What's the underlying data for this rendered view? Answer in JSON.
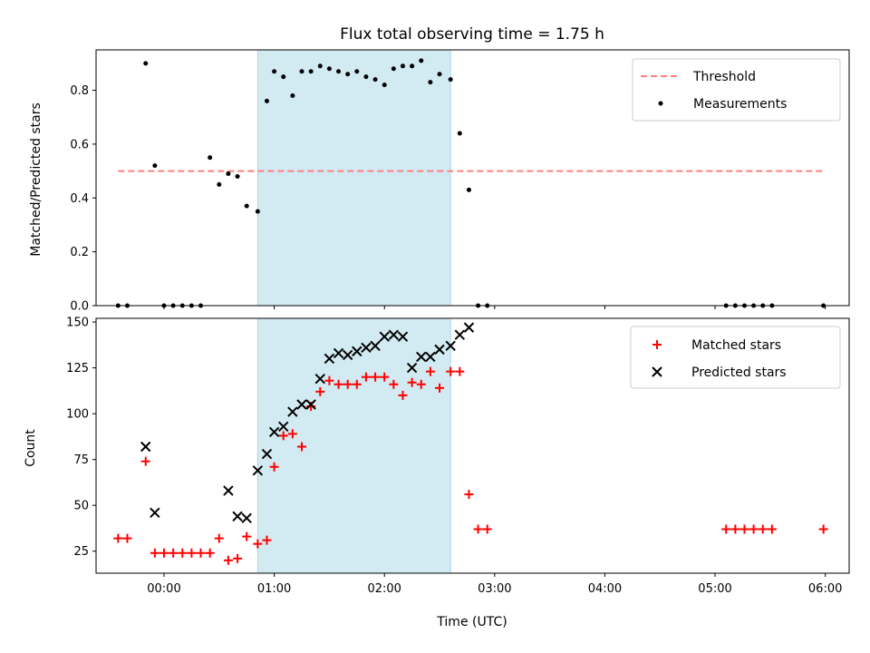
{
  "colors": {
    "threshold": "#ff7f7f",
    "measurement": "#000000",
    "matched": "#ff0000",
    "predicted": "#000000",
    "span": "#add8e6"
  },
  "chart_data": [
    {
      "type": "scatter",
      "title": "Flux total observing time = 1.75 h",
      "xlabel": "",
      "ylabel": "Matched/Predicted stars",
      "xlim": [
        "23:23",
        "06:13"
      ],
      "ylim": [
        0,
        0.95
      ],
      "yticks": [
        "0.0",
        "0.2",
        "0.4",
        "0.6",
        "0.8"
      ],
      "grid": false,
      "legend_position": "upper right",
      "shaded_span": [
        "00:51",
        "02:36"
      ],
      "series": [
        {
          "name": "Threshold",
          "style": "dashed-line",
          "x": [
            "23:35",
            "05:59"
          ],
          "y": [
            0.5,
            0.5
          ]
        },
        {
          "name": "Measurements",
          "style": "dots",
          "x": [
            "23:35",
            "23:40",
            "23:50",
            "23:55",
            "00:00",
            "00:05",
            "00:10",
            "00:15",
            "00:20",
            "00:25",
            "00:30",
            "00:35",
            "00:40",
            "00:45",
            "00:51",
            "00:56",
            "01:00",
            "01:05",
            "01:10",
            "01:15",
            "01:20",
            "01:25",
            "01:30",
            "01:35",
            "01:40",
            "01:45",
            "01:50",
            "01:55",
            "02:00",
            "02:05",
            "02:10",
            "02:15",
            "02:20",
            "02:25",
            "02:30",
            "02:36",
            "02:41",
            "02:46",
            "02:51",
            "02:56",
            "05:06",
            "05:11",
            "05:16",
            "05:21",
            "05:26",
            "05:31",
            "05:59"
          ],
          "y": [
            0,
            0,
            0.9,
            0.52,
            0,
            0,
            0,
            0,
            0,
            0.55,
            0.45,
            0.49,
            0.48,
            0.37,
            0.35,
            0.76,
            0.87,
            0.85,
            0.78,
            0.87,
            0.87,
            0.89,
            0.88,
            0.87,
            0.86,
            0.87,
            0.85,
            0.84,
            0.82,
            0.88,
            0.89,
            0.89,
            0.91,
            0.83,
            0.86,
            0.84,
            0.64,
            0.43,
            0,
            0,
            0,
            0,
            0,
            0,
            0,
            0,
            0
          ]
        }
      ]
    },
    {
      "type": "scatter",
      "title": "",
      "xlabel": "Time (UTC)",
      "ylabel": "Count",
      "xlim": [
        "23:23",
        "06:13"
      ],
      "xticks": [
        "00:00",
        "01:00",
        "02:00",
        "03:00",
        "04:00",
        "05:00",
        "06:00"
      ],
      "ylim": [
        13,
        152
      ],
      "yticks": [
        "25",
        "50",
        "75",
        "100",
        "125",
        "150"
      ],
      "grid": false,
      "legend_position": "upper right",
      "shaded_span": [
        "00:51",
        "02:36"
      ],
      "series": [
        {
          "name": "Matched stars",
          "style": "plus",
          "x": [
            "23:35",
            "23:40",
            "23:50",
            "23:55",
            "00:00",
            "00:05",
            "00:10",
            "00:15",
            "00:20",
            "00:25",
            "00:30",
            "00:35",
            "00:40",
            "00:45",
            "00:51",
            "00:56",
            "01:00",
            "01:05",
            "01:10",
            "01:15",
            "01:20",
            "01:25",
            "01:30",
            "01:35",
            "01:40",
            "01:45",
            "01:50",
            "01:55",
            "02:00",
            "02:05",
            "02:10",
            "02:15",
            "02:20",
            "02:25",
            "02:30",
            "02:36",
            "02:41",
            "02:46",
            "02:51",
            "02:56",
            "05:06",
            "05:11",
            "05:16",
            "05:21",
            "05:26",
            "05:31",
            "05:59"
          ],
          "y": [
            32,
            32,
            74,
            24,
            24,
            24,
            24,
            24,
            24,
            24,
            32,
            20,
            21,
            33,
            29,
            31,
            71,
            88,
            89,
            82,
            104,
            112,
            118,
            116,
            116,
            116,
            120,
            120,
            120,
            116,
            110,
            117,
            116,
            123,
            114,
            123,
            123,
            56,
            37,
            37,
            37,
            37,
            37,
            37,
            37,
            37,
            37
          ]
        },
        {
          "name": "Predicted stars",
          "style": "x",
          "x": [
            "23:50",
            "23:55",
            "00:35",
            "00:40",
            "00:45",
            "00:51",
            "00:56",
            "01:00",
            "01:05",
            "01:10",
            "01:15",
            "01:20",
            "01:25",
            "01:30",
            "01:35",
            "01:40",
            "01:45",
            "01:50",
            "01:55",
            "02:00",
            "02:05",
            "02:10",
            "02:15",
            "02:20",
            "02:25",
            "02:30",
            "02:36",
            "02:41",
            "02:46"
          ],
          "y": [
            82,
            46,
            58,
            44,
            43,
            69,
            78,
            90,
            93,
            101,
            105,
            105,
            119,
            130,
            133,
            132,
            134,
            136,
            137,
            142,
            143,
            142,
            125,
            131,
            131,
            135,
            137,
            143,
            147
          ]
        }
      ]
    }
  ]
}
